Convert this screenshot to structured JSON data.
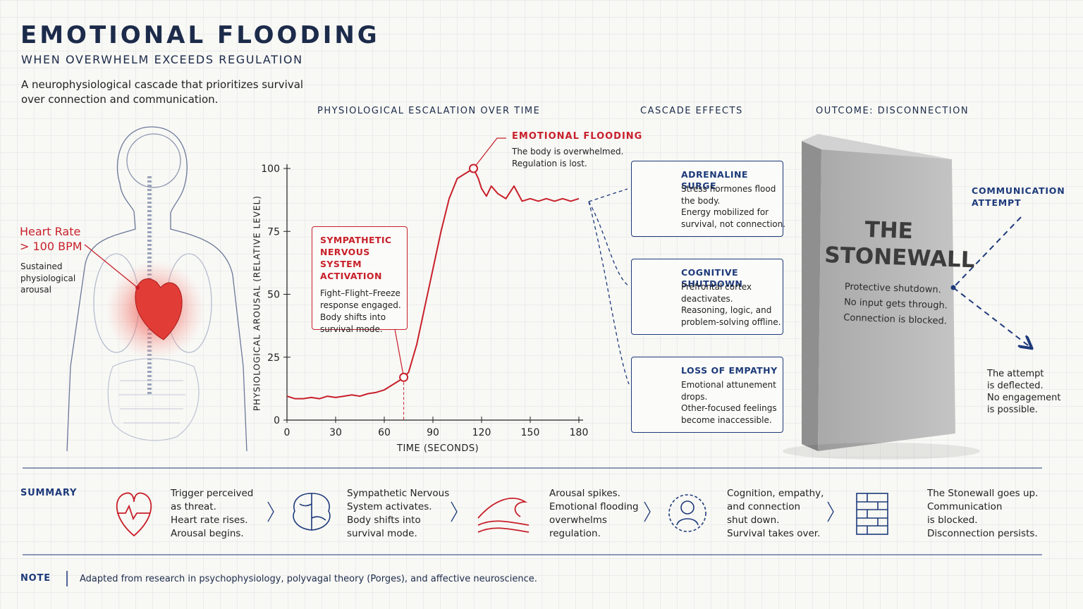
{
  "header": {
    "title": "EMOTIONAL FLOODING",
    "subtitle": "WHEN OVERWHELM EXCEEDS REGULATION",
    "description": [
      "A neurophysiological cascade that prioritizes survival",
      "over connection and communication."
    ]
  },
  "body": {
    "label": [
      "Heart Rate",
      "> 100 BPM"
    ],
    "note": [
      "Sustained",
      "physiological",
      "arousal"
    ]
  },
  "chart_data": {
    "type": "line",
    "title": "PHYSIOLOGICAL ESCALATION OVER TIME",
    "x_label": "TIME (SECONDS)",
    "y_label": "PHYSIOLOGICAL AROUSAL (RELATIVE LEVEL)",
    "color": "#c8202a",
    "x": [
      0,
      5,
      10,
      15,
      20,
      25,
      30,
      35,
      40,
      45,
      50,
      55,
      60,
      65,
      70,
      72,
      75,
      80,
      85,
      90,
      95,
      100,
      105,
      110,
      115,
      118,
      120,
      123,
      126,
      130,
      135,
      140,
      145,
      150,
      155,
      160,
      165,
      170,
      175,
      180
    ],
    "values": [
      9.5,
      8.5,
      8.5,
      9,
      8.5,
      9.5,
      9,
      9.5,
      10,
      9.5,
      10.5,
      11,
      12,
      14,
      16,
      17,
      19,
      30,
      45,
      60,
      75,
      88,
      96,
      98,
      100,
      96,
      92,
      89,
      93,
      90,
      88,
      93,
      87,
      88,
      87,
      88,
      87,
      88,
      87,
      88
    ],
    "xlim": [
      0,
      180
    ],
    "ylim": [
      0,
      100
    ],
    "xticks": [
      0,
      30,
      60,
      90,
      120,
      150,
      180
    ],
    "yticks": [
      0,
      25,
      50,
      75,
      100
    ],
    "annotations": [
      {
        "x": 72,
        "y": 17,
        "title": [
          "SYMPATHETIC",
          "NERVOUS SYSTEM",
          "ACTIVATION"
        ],
        "text": [
          "Fight–Flight–Freeze",
          "response engaged.",
          "Body shifts into",
          "survival mode."
        ]
      },
      {
        "x": 115,
        "y": 100,
        "title": [
          "EMOTIONAL FLOODING"
        ],
        "text": [
          "The body is overwhelmed.",
          "Regulation is lost."
        ]
      }
    ]
  },
  "cascade": {
    "title": "CASCADE EFFECTS",
    "items": [
      {
        "title": "ADRENALINE SURGE",
        "text": [
          "Stress hormones flood",
          "the body.",
          "Energy mobilized for",
          "survival, not connection."
        ]
      },
      {
        "title": "COGNITIVE SHUTDOWN",
        "text": [
          "Prefrontal cortex",
          "deactivates.",
          "Reasoning, logic, and",
          "problem-solving offline."
        ]
      },
      {
        "title": "LOSS OF EMPATHY",
        "text": [
          "Emotional attunement",
          "drops.",
          "Other-focused feelings",
          "become inaccessible."
        ]
      }
    ]
  },
  "outcome": {
    "title": "OUTCOME: DISCONNECTION",
    "wall_title": [
      "THE",
      "STONEWALL"
    ],
    "wall_text": [
      "Protective shutdown.",
      "No input gets through.",
      "Connection is blocked."
    ],
    "attempt_label": [
      "COMMUNICATION",
      "ATTEMPT"
    ],
    "attempt_text": [
      "The attempt",
      "is deflected.",
      "No engagement",
      "is possible."
    ]
  },
  "summary": {
    "title": "SUMMARY",
    "steps": [
      [
        "Trigger perceived",
        "as threat.",
        "Heart rate rises.",
        "Arousal begins."
      ],
      [
        "Sympathetic Nervous",
        "System activates.",
        "Body shifts into",
        "survival mode."
      ],
      [
        "Arousal spikes.",
        "Emotional flooding",
        "overwhelms",
        "regulation."
      ],
      [
        "Cognition, empathy,",
        "and connection",
        "shut down.",
        "Survival takes over."
      ],
      [
        "The Stonewall goes up.",
        "Communication",
        "is blocked.",
        "Disconnection persists."
      ]
    ]
  },
  "note": {
    "label": "NOTE",
    "text": "Adapted from research in psychophysiology, polyvagal theory (Porges), and affective neuroscience."
  }
}
